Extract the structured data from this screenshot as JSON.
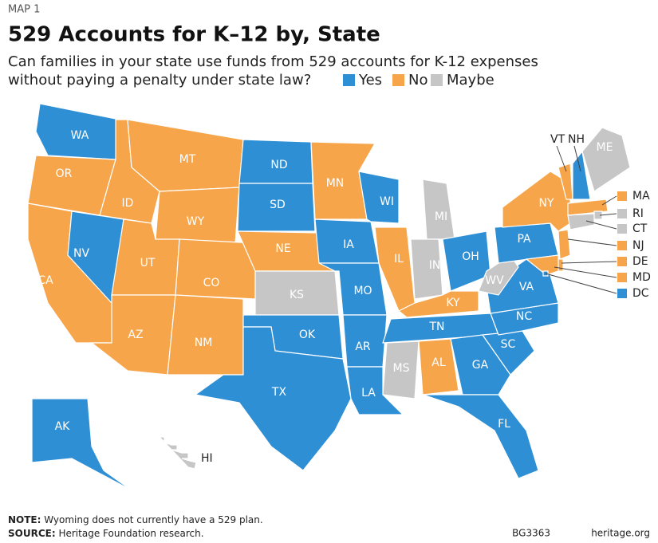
{
  "header": {
    "kicker": "MAP 1",
    "title": "529 Accounts for K–12 by, State",
    "subtitle_line1": "Can families in your state use funds from 529 accounts for K-12 expenses",
    "subtitle_line2": "without paying a penalty under state law?"
  },
  "legend": [
    {
      "label": "Yes",
      "color": "#2f8fd5"
    },
    {
      "label": "No",
      "color": "#f7a54a"
    },
    {
      "label": "Maybe",
      "color": "#c6c6c6"
    }
  ],
  "states": [
    {
      "label": "WA",
      "color": "#2f8fd5"
    },
    {
      "label": "OR",
      "color": "#f7a54a"
    },
    {
      "label": "CA",
      "color": "#f7a54a"
    },
    {
      "label": "NV",
      "color": "#2f8fd5"
    },
    {
      "label": "ID",
      "color": "#f7a54a"
    },
    {
      "label": "MT",
      "color": "#f7a54a"
    },
    {
      "label": "WY",
      "color": "#f7a54a"
    },
    {
      "label": "UT",
      "color": "#f7a54a"
    },
    {
      "label": "CO",
      "color": "#f7a54a"
    },
    {
      "label": "AZ",
      "color": "#f7a54a"
    },
    {
      "label": "NM",
      "color": "#f7a54a"
    },
    {
      "label": "ND",
      "color": "#2f8fd5"
    },
    {
      "label": "SD",
      "color": "#2f8fd5"
    },
    {
      "label": "NE",
      "color": "#f7a54a"
    },
    {
      "label": "KS",
      "color": "#c6c6c6"
    },
    {
      "label": "OK",
      "color": "#2f8fd5"
    },
    {
      "label": "TX",
      "color": "#2f8fd5"
    },
    {
      "label": "MN",
      "color": "#f7a54a"
    },
    {
      "label": "IA",
      "color": "#2f8fd5"
    },
    {
      "label": "MO",
      "color": "#2f8fd5"
    },
    {
      "label": "AR",
      "color": "#2f8fd5"
    },
    {
      "label": "LA",
      "color": "#2f8fd5"
    },
    {
      "label": "WI",
      "color": "#2f8fd5"
    },
    {
      "label": "IL",
      "color": "#f7a54a"
    },
    {
      "label": "MI",
      "color": "#c6c6c6"
    },
    {
      "label": "IN",
      "color": "#c6c6c6"
    },
    {
      "label": "OH",
      "color": "#2f8fd5"
    },
    {
      "label": "KY",
      "color": "#f7a54a"
    },
    {
      "label": "TN",
      "color": "#2f8fd5"
    },
    {
      "label": "MS",
      "color": "#c6c6c6"
    },
    {
      "label": "AL",
      "color": "#f7a54a"
    },
    {
      "label": "GA",
      "color": "#2f8fd5"
    },
    {
      "label": "FL",
      "color": "#2f8fd5"
    },
    {
      "label": "SC",
      "color": "#2f8fd5"
    },
    {
      "label": "NC",
      "color": "#2f8fd5"
    },
    {
      "label": "VA",
      "color": "#2f8fd5"
    },
    {
      "label": "WV",
      "color": "#c6c6c6"
    },
    {
      "label": "PA",
      "color": "#2f8fd5"
    },
    {
      "label": "NY",
      "color": "#f7a54a"
    },
    {
      "label": "VT",
      "color": "#f7a54a"
    },
    {
      "label": "NH",
      "color": "#2f8fd5"
    },
    {
      "label": "ME",
      "color": "#c6c6c6"
    },
    {
      "label": "MA",
      "color": "#f7a54a"
    },
    {
      "label": "RI",
      "color": "#c6c6c6"
    },
    {
      "label": "CT",
      "color": "#c6c6c6"
    },
    {
      "label": "NJ",
      "color": "#f7a54a"
    },
    {
      "label": "DE",
      "color": "#f7a54a"
    },
    {
      "label": "MD",
      "color": "#f7a54a"
    },
    {
      "label": "DC",
      "color": "#2f8fd5"
    },
    {
      "label": "AK",
      "color": "#2f8fd5"
    },
    {
      "label": "HI",
      "color": "#c6c6c6"
    }
  ],
  "footer": {
    "note_label": "NOTE:",
    "note": "Wyoming does not currently have a 529 plan.",
    "source_label": "SOURCE:",
    "source": "Heritage Foundation research.",
    "code": "BG3363",
    "site": "heritage.org"
  }
}
